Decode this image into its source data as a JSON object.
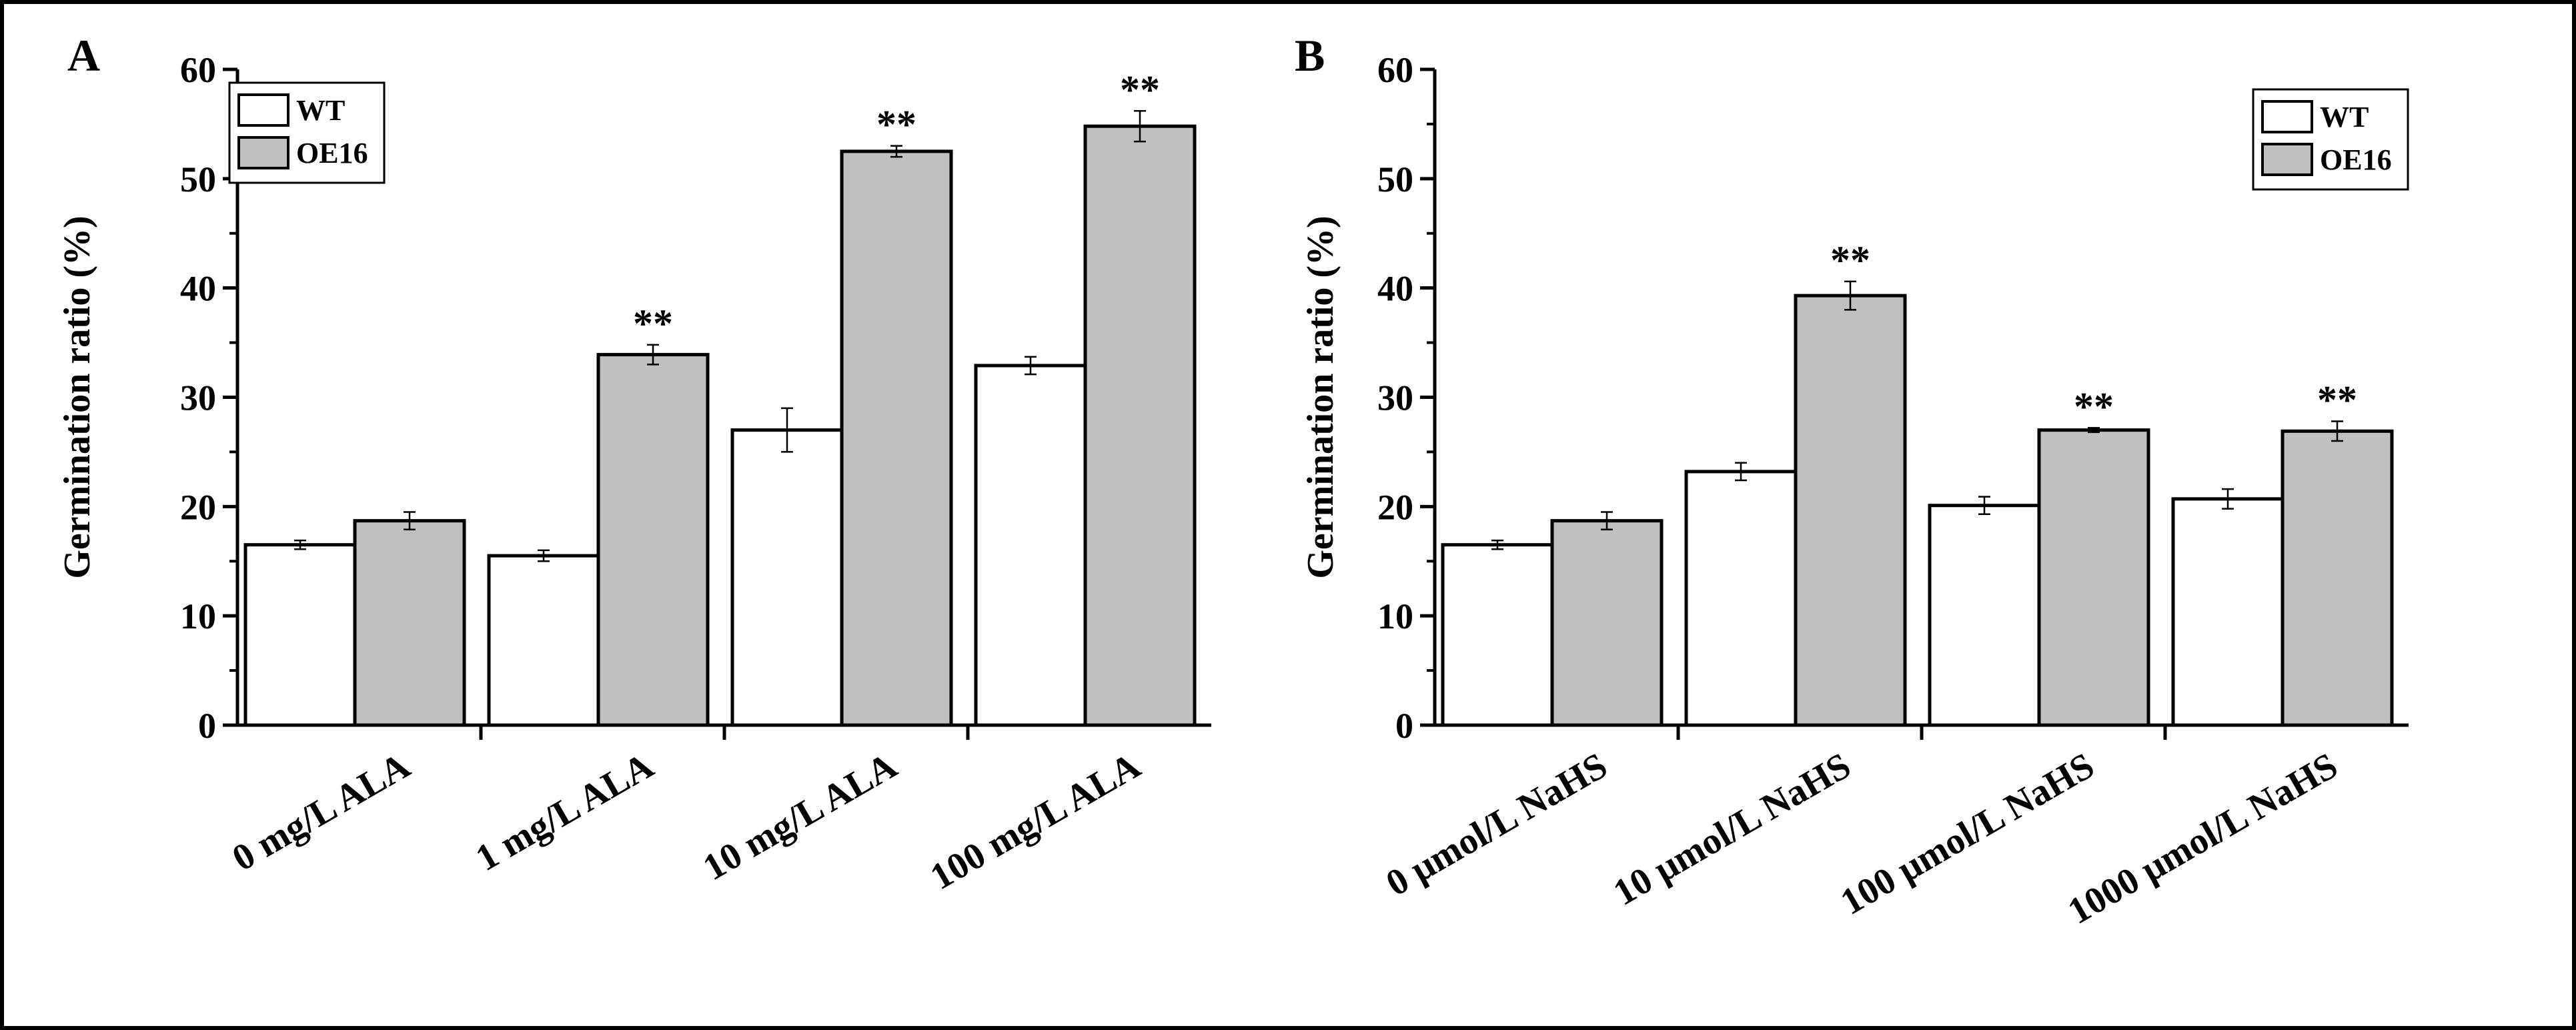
{
  "colors": {
    "wt_fill": "#ffffff",
    "oe16_fill": "#c0c0c0",
    "stroke": "#000000"
  },
  "chart_data": [
    {
      "panel_label": "A",
      "type": "bar",
      "ylabel": "Germination ratio (%)",
      "xlabel": "",
      "ylim": [
        0,
        60
      ],
      "yticks": [
        0,
        10,
        20,
        30,
        40,
        50,
        60
      ],
      "yticks_labels": [
        "0",
        "10",
        "20",
        "30",
        "40",
        "50",
        "60"
      ],
      "categories": [
        "0 mg/L ALA",
        "1 mg/L ALA",
        "10 mg/L ALA",
        "100 mg/L ALA"
      ],
      "series": [
        {
          "name": "WT",
          "values": [
            16.5,
            15.5,
            27.0,
            32.9
          ],
          "errors": [
            0.4,
            0.5,
            2.0,
            0.8
          ]
        },
        {
          "name": "OE16",
          "values": [
            18.7,
            33.9,
            52.5,
            54.8
          ],
          "errors": [
            0.8,
            0.9,
            0.5,
            1.4
          ]
        }
      ],
      "significance": [
        "",
        "**",
        "**",
        "**"
      ],
      "legend": {
        "position": "top-left",
        "entries": [
          "WT",
          "OE16"
        ]
      }
    },
    {
      "panel_label": "B",
      "type": "bar",
      "ylabel": "Germination ratio (%)",
      "xlabel": "",
      "ylim": [
        0,
        60
      ],
      "yticks": [
        0,
        10,
        20,
        30,
        40,
        50,
        60
      ],
      "yticks_labels": [
        "0",
        "10",
        "20",
        "30",
        "40",
        "50",
        "60"
      ],
      "categories": [
        "0 μmol/L NaHS",
        "10 μmol/L NaHS",
        "100 μmol/L NaHS",
        "1000 μmol/L NaHS"
      ],
      "series": [
        {
          "name": "WT",
          "values": [
            16.5,
            23.2,
            20.1,
            20.7
          ],
          "errors": [
            0.4,
            0.8,
            0.8,
            0.9
          ]
        },
        {
          "name": "OE16",
          "values": [
            18.7,
            39.3,
            27.0,
            26.9
          ],
          "errors": [
            0.8,
            1.3,
            0.2,
            0.9
          ]
        }
      ],
      "significance": [
        "",
        "**",
        "**",
        "**"
      ],
      "legend": {
        "position": "top-right",
        "entries": [
          "WT",
          "OE16"
        ]
      }
    }
  ]
}
